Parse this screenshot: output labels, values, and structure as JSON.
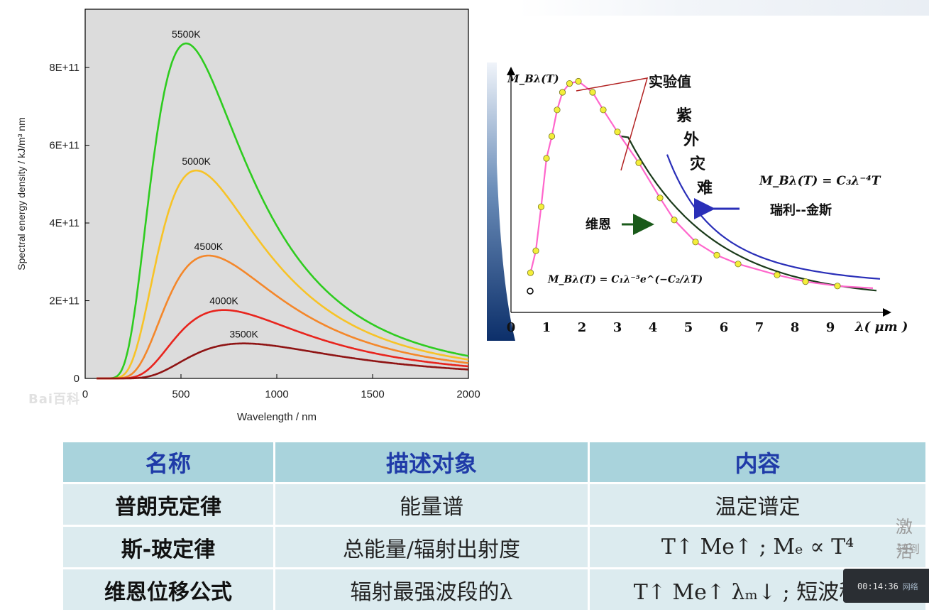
{
  "chart_data": [
    {
      "type": "line",
      "title": "",
      "xlabel": "Wavelength / nm",
      "ylabel": "Spectral energy density / kJ/m³ nm",
      "xlim": [
        0,
        2000
      ],
      "ylim": [
        0,
        950000000000
      ],
      "x_ticks": [
        0,
        500,
        1000,
        1500,
        2000
      ],
      "x_tick_labels": [
        "0",
        "500",
        "1000",
        "1500",
        "2000"
      ],
      "y_ticks": [
        0,
        200000000000,
        400000000000,
        600000000000,
        800000000000
      ],
      "y_tick_labels": [
        "0",
        "2E+11",
        "4E+11",
        "6E+11",
        "8E+11"
      ],
      "grid": false,
      "background": "#dcdcdc",
      "series": [
        {
          "name": "5500K",
          "temperature": 5500,
          "color": "#2ecc1f",
          "peak_x": 527,
          "peak_y": 862000000000
        },
        {
          "name": "5000K",
          "temperature": 5000,
          "color": "#f7c327",
          "peak_x": 580,
          "peak_y": 535000000000
        },
        {
          "name": "4500K",
          "temperature": 4500,
          "color": "#f4872a",
          "peak_x": 644,
          "peak_y": 316000000000
        },
        {
          "name": "4000K",
          "temperature": 4000,
          "color": "#e8241d",
          "peak_x": 724,
          "peak_y": 176000000000
        },
        {
          "name": "3500K",
          "temperature": 3500,
          "color": "#8f1414",
          "peak_x": 828,
          "peak_y": 90000000000
        }
      ]
    },
    {
      "type": "line",
      "title": "",
      "ylabel": "M_Bλ(T)",
      "xlabel": "λ( μm )",
      "xlim": [
        0,
        10
      ],
      "x_tick_labels": [
        "0",
        "1",
        "2",
        "3",
        "4",
        "5",
        "6",
        "7",
        "8",
        "9"
      ],
      "series": [
        {
          "name": "实验值",
          "color": "#ff66cc",
          "markers": true,
          "points": [
            [
              0.55,
              0.18
            ],
            [
              0.7,
              0.28
            ],
            [
              0.85,
              0.48
            ],
            [
              1.0,
              0.7
            ],
            [
              1.15,
              0.8
            ],
            [
              1.3,
              0.92
            ],
            [
              1.45,
              1.0
            ],
            [
              1.65,
              1.04
            ],
            [
              1.9,
              1.05
            ],
            [
              2.3,
              1.0
            ],
            [
              2.6,
              0.92
            ],
            [
              3.0,
              0.82
            ],
            [
              3.6,
              0.68
            ],
            [
              4.2,
              0.52
            ],
            [
              4.6,
              0.42
            ],
            [
              5.2,
              0.32
            ],
            [
              5.8,
              0.26
            ],
            [
              6.4,
              0.22
            ],
            [
              7.5,
              0.17
            ],
            [
              8.3,
              0.14
            ],
            [
              9.2,
              0.12
            ]
          ]
        },
        {
          "name": "维恩",
          "color": "#1a3a1a"
        },
        {
          "name": "瑞利--金斯",
          "color": "#2a2fb8"
        }
      ],
      "annotations": {
        "experimental": "实验值",
        "uv_catastrophe": [
          "紫",
          "外",
          "灾",
          "难"
        ],
        "rayleigh_jeans_formula": "M_Bλ(T) = C₃λ⁻⁴T",
        "rayleigh_jeans_label": "瑞利--金斯",
        "wien_label": "维恩",
        "wien_formula": "M_Bλ(T) = C₁λ⁻⁵e^(−C₂/λT)"
      }
    }
  ],
  "watermark": "Bai百科",
  "table": {
    "headers": [
      "名称",
      "描述对象",
      "内容"
    ],
    "rows": [
      {
        "law": "普朗克定律",
        "object": "能量谱",
        "content": "温定谱定"
      },
      {
        "law": "斯-玻定律",
        "object": "总能量/辐射出射度",
        "content": "T↑   Me↑ ; Mₑ ∝ T⁴"
      },
      {
        "law": "维恩位移公式",
        "object": "辐射最强波段的λ",
        "content": "T↑   Me↑  λₘ↓ ; 短波移动"
      }
    ]
  },
  "os_overlay": {
    "line1": "激活",
    "line2": "转到"
  },
  "video_player": {
    "time": "00:14:36",
    "network": "网络"
  }
}
